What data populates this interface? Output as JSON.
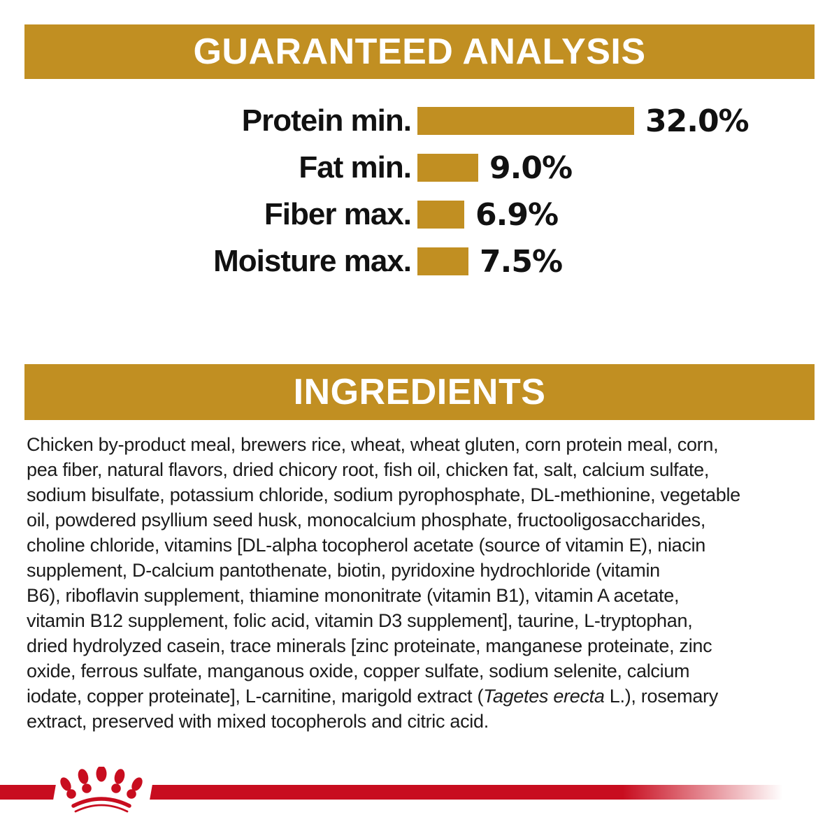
{
  "colors": {
    "gold": "#C18F22",
    "red": "#C80D1F",
    "text": "#1B1B1B",
    "banner_text": "#FFFFFF"
  },
  "sections": {
    "guaranteed_analysis": {
      "title": "GUARANTEED ANALYSIS"
    },
    "ingredients": {
      "title": "INGREDIENTS"
    }
  },
  "chart_data": {
    "type": "bar",
    "orientation": "horizontal",
    "title": "GUARANTEED ANALYSIS",
    "categories": [
      "Protein min.",
      "Fat min.",
      "Fiber max.",
      "Moisture max."
    ],
    "values": [
      32.0,
      9.0,
      6.9,
      7.5
    ],
    "value_labels": [
      "32.0%",
      "9.0%",
      "6.9%",
      "7.5%"
    ],
    "bar_color": "#C18F22",
    "xlim": [
      0,
      32
    ],
    "grid": false,
    "legend": false
  },
  "ingredients": {
    "lines": [
      [
        {
          "t": "Chicken by-product meal, brewers rice, wheat, wheat gluten, corn protein meal, corn,"
        }
      ],
      [
        {
          "t": "pea fiber, natural flavors, dried chicory root, fish oil, chicken fat, salt, calcium sulfate,"
        }
      ],
      [
        {
          "t": "sodium bisulfate, potassium chloride, sodium pyrophosphate, DL-methionine, vegetable"
        }
      ],
      [
        {
          "t": "oil, powdered psyllium seed husk, monocalcium phosphate, fructooligosaccharides,"
        }
      ],
      [
        {
          "t": "choline chloride, vitamins [DL-alpha tocopherol acetate (source of vitamin E), niacin"
        }
      ],
      [
        {
          "t": "supplement, D-calcium pantothenate, biotin, pyridoxine hydrochloride (vitamin"
        }
      ],
      [
        {
          "t": "B6), riboflavin supplement, thiamine mononitrate (vitamin B1), vitamin A acetate,"
        }
      ],
      [
        {
          "t": "vitamin B12 supplement, folic acid, vitamin D3 supplement], taurine, L-tryptophan,"
        }
      ],
      [
        {
          "t": "dried hydrolyzed casein, trace minerals [zinc proteinate, manganese proteinate, zinc"
        }
      ],
      [
        {
          "t": "oxide, ferrous sulfate, manganous oxide, copper sulfate, sodium selenite, calcium"
        }
      ],
      [
        {
          "t": "iodate, copper proteinate], L-carnitine, marigold extract ("
        },
        {
          "t": "Tagetes erecta",
          "i": true
        },
        {
          "t": " L.), rosemary"
        }
      ],
      [
        {
          "t": "extract, preserved with mixed tocopherols and citric acid."
        }
      ]
    ]
  },
  "footer": {
    "logo_icon": "royal-canin-crown-icon"
  }
}
